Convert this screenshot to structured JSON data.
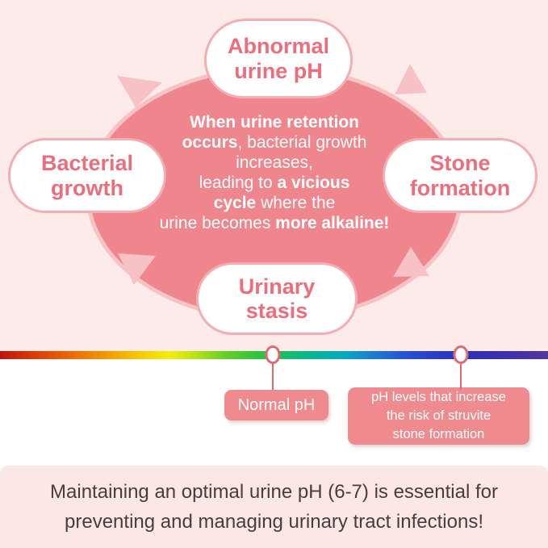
{
  "cycle": {
    "nodes": [
      {
        "id": "abnormal-urine-ph",
        "label": "Abnormal urine pH",
        "lines": [
          "Abnormal",
          "urine pH"
        ]
      },
      {
        "id": "stone-formation",
        "label": "Stone formation",
        "lines": [
          "Stone",
          "formation"
        ]
      },
      {
        "id": "urinary-stasis",
        "label": "Urinary stasis",
        "lines": [
          "Urinary",
          "stasis"
        ]
      },
      {
        "id": "bacterial-growth",
        "label": "Bacterial growth",
        "lines": [
          "Bacterial",
          "growth"
        ]
      }
    ],
    "center_lines": [
      [
        {
          "t": "When urine retention",
          "b": true
        }
      ],
      [
        {
          "t": "occurs",
          "b": true
        },
        {
          "t": ", bacterial growth",
          "b": false
        }
      ],
      [
        {
          "t": "increases,",
          "b": false
        }
      ],
      [
        {
          "t": "leading to ",
          "b": false
        },
        {
          "t": "a vicious",
          "b": true
        }
      ],
      [
        {
          "t": "cycle",
          "b": true
        },
        {
          "t": " where the",
          "b": false
        }
      ],
      [
        {
          "t": "urine becomes ",
          "b": false
        },
        {
          "t": "more alkaline!",
          "b": true
        }
      ]
    ]
  },
  "ph_scale": {
    "gradient": [
      {
        "color": "#c11212",
        "pos": 0
      },
      {
        "color": "#d83208",
        "pos": 5
      },
      {
        "color": "#ec6a04",
        "pos": 13
      },
      {
        "color": "#f59e00",
        "pos": 20
      },
      {
        "color": "#f6d500",
        "pos": 27
      },
      {
        "color": "#f2ee0a",
        "pos": 31
      },
      {
        "color": "#b4e214",
        "pos": 36
      },
      {
        "color": "#66cf24",
        "pos": 41
      },
      {
        "color": "#2fc43c",
        "pos": 47
      },
      {
        "color": "#12bd6f",
        "pos": 53
      },
      {
        "color": "#02b69c",
        "pos": 58
      },
      {
        "color": "#06a8c4",
        "pos": 63
      },
      {
        "color": "#1a7fd4",
        "pos": 68
      },
      {
        "color": "#2457da",
        "pos": 73
      },
      {
        "color": "#2a3ecb",
        "pos": 79
      },
      {
        "color": "#2d31ba",
        "pos": 86
      },
      {
        "color": "#4030ab",
        "pos": 93
      },
      {
        "color": "#5636a3",
        "pos": 100
      }
    ],
    "markers": [
      {
        "id": "normal-ph",
        "position_pct": 49.8,
        "label_lines": [
          "Normal pH"
        ]
      },
      {
        "id": "struvite-risk",
        "position_pct": 84.1,
        "label_lines": [
          "pH levels that increase",
          "the risk of struvite",
          "stone formation"
        ]
      }
    ]
  },
  "footer": {
    "lines": [
      "Maintaining an optimal urine pH (6-7) is essential for",
      "preventing and managing urinary tract infections!"
    ]
  },
  "colors": {
    "page_background_top": "#fcebe8",
    "cycle_circle_fill": "#f0868d",
    "cycle_circle_ring": "#f7c3c5",
    "cycle_arrow": "#f6c2c5",
    "bubble_border": "#f4adb2",
    "bubble_text": "#ec6d7c",
    "center_text": "#ffffff",
    "marker_border": "#e0696f",
    "label_box_fill": "#ef8a8e",
    "label_box_text": "#ffffff",
    "footer_background": "#fbe7e4",
    "footer_text": "#4b3c3c"
  }
}
